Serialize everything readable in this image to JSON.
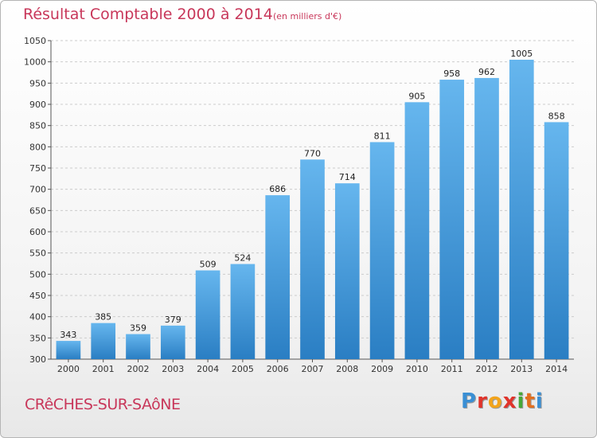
{
  "header": {
    "title": "Résultat Comptable 2000 à 2014",
    "subtitle": "(en milliers d'€)"
  },
  "footer": {
    "city": "CRêCHES-SUR-SAôNE",
    "logo": {
      "letters": [
        "P",
        "r",
        "o",
        "x",
        "i",
        "t",
        "i"
      ],
      "colors": [
        "#3a8fd4",
        "#e0342b",
        "#f2a41c",
        "#e0342b",
        "#47a838",
        "#e36f1e",
        "#3a8fd4"
      ]
    }
  },
  "colors": {
    "bar_top": "#66b6ee",
    "bar_bottom": "#2a7ec3",
    "title": "#c8375a",
    "grid": "#cccccc"
  },
  "chart_data": {
    "type": "bar",
    "categories": [
      "2000",
      "2001",
      "2002",
      "2003",
      "2004",
      "2005",
      "2006",
      "2007",
      "2008",
      "2009",
      "2010",
      "2011",
      "2012",
      "2013",
      "2014"
    ],
    "values": [
      343,
      385,
      359,
      379,
      509,
      524,
      686,
      770,
      714,
      811,
      905,
      958,
      962,
      1005,
      858
    ],
    "yticks": [
      300,
      350,
      400,
      450,
      500,
      550,
      600,
      650,
      700,
      750,
      800,
      850,
      900,
      950,
      1000,
      1050
    ],
    "ylim": [
      300,
      1050
    ],
    "grid": true,
    "title": "Résultat Comptable 2000 à 2014",
    "xlabel": "",
    "ylabel": ""
  }
}
